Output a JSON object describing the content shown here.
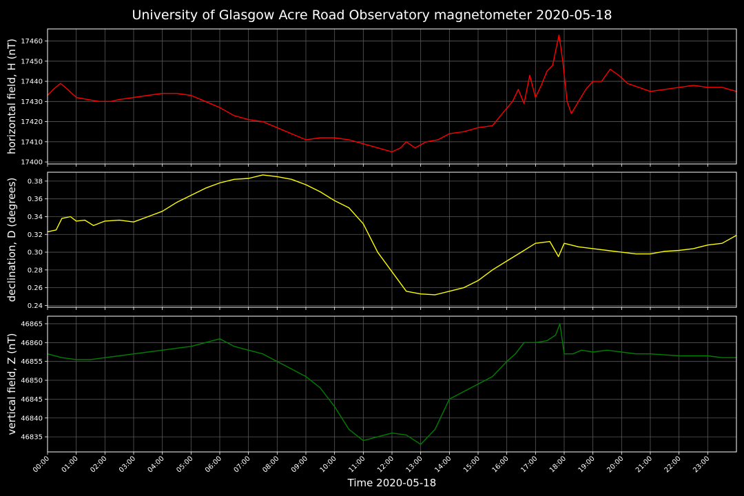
{
  "title": "University of Glasgow Acre Road Observatory magnetometer 2020-05-18",
  "chart_data": {
    "type": "line",
    "xlabel": "Time 2020-05-18",
    "x_ticks": [
      "00:00",
      "01:00",
      "02:00",
      "03:00",
      "04:00",
      "05:00",
      "06:00",
      "07:00",
      "08:00",
      "09:00",
      "10:00",
      "11:00",
      "12:00",
      "13:00",
      "14:00",
      "15:00",
      "16:00",
      "17:00",
      "18:00",
      "19:00",
      "20:00",
      "21:00",
      "22:00",
      "23:00"
    ],
    "xlim": [
      0,
      24
    ],
    "grid": true,
    "panels": [
      {
        "ylabel": "horizontal field, H (nT)",
        "color": "#ff0000",
        "ylim": [
          17399,
          17466
        ],
        "yticks": [
          "17400",
          "17410",
          "17420",
          "17430",
          "17440",
          "17450",
          "17460"
        ],
        "points": [
          [
            0,
            17433
          ],
          [
            0.2,
            17436
          ],
          [
            0.45,
            17439
          ],
          [
            0.7,
            17436
          ],
          [
            1,
            17432
          ],
          [
            1.4,
            17431
          ],
          [
            1.8,
            17430
          ],
          [
            2.2,
            17430
          ],
          [
            2.5,
            17431
          ],
          [
            3,
            17432
          ],
          [
            3.5,
            17433
          ],
          [
            4,
            17434
          ],
          [
            4.5,
            17434
          ],
          [
            5,
            17433
          ],
          [
            5.5,
            17430
          ],
          [
            6,
            17427
          ],
          [
            6.5,
            17423
          ],
          [
            7,
            17421
          ],
          [
            7.5,
            17420
          ],
          [
            8,
            17417
          ],
          [
            8.5,
            17414
          ],
          [
            9,
            17411
          ],
          [
            9.5,
            17412
          ],
          [
            10,
            17412
          ],
          [
            10.5,
            17411
          ],
          [
            11,
            17409
          ],
          [
            11.5,
            17407
          ],
          [
            12,
            17405
          ],
          [
            12.3,
            17407
          ],
          [
            12.5,
            17410
          ],
          [
            12.8,
            17407
          ],
          [
            13.2,
            17410
          ],
          [
            13.6,
            17411
          ],
          [
            14,
            17414
          ],
          [
            14.5,
            17415
          ],
          [
            15,
            17417
          ],
          [
            15.5,
            17418
          ],
          [
            15.9,
            17425
          ],
          [
            16.2,
            17430
          ],
          [
            16.4,
            17436
          ],
          [
            16.6,
            17429
          ],
          [
            16.8,
            17443
          ],
          [
            17,
            17432
          ],
          [
            17.2,
            17438
          ],
          [
            17.4,
            17445
          ],
          [
            17.6,
            17448
          ],
          [
            17.7,
            17455
          ],
          [
            17.82,
            17463
          ],
          [
            17.95,
            17450
          ],
          [
            18.1,
            17430
          ],
          [
            18.25,
            17424
          ],
          [
            18.5,
            17430
          ],
          [
            18.75,
            17436
          ],
          [
            19,
            17440
          ],
          [
            19.3,
            17440
          ],
          [
            19.6,
            17446
          ],
          [
            19.9,
            17443
          ],
          [
            20.2,
            17439
          ],
          [
            20.6,
            17437
          ],
          [
            21,
            17435
          ],
          [
            21.5,
            17436
          ],
          [
            22,
            17437
          ],
          [
            22.5,
            17438
          ],
          [
            23,
            17437
          ],
          [
            23.5,
            17437
          ],
          [
            24,
            17435
          ]
        ]
      },
      {
        "ylabel": "declination, D (degrees)",
        "color": "#ffff00",
        "ylim": [
          0.238,
          0.39
        ],
        "yticks": [
          "0.24",
          "0.26",
          "0.28",
          "0.30",
          "0.32",
          "0.34",
          "0.36",
          "0.38"
        ],
        "points": [
          [
            0,
            0.323
          ],
          [
            0.3,
            0.325
          ],
          [
            0.5,
            0.338
          ],
          [
            0.8,
            0.34
          ],
          [
            1,
            0.335
          ],
          [
            1.3,
            0.336
          ],
          [
            1.6,
            0.33
          ],
          [
            2,
            0.335
          ],
          [
            2.5,
            0.336
          ],
          [
            3,
            0.334
          ],
          [
            3.5,
            0.34
          ],
          [
            4,
            0.346
          ],
          [
            4.5,
            0.356
          ],
          [
            5,
            0.364
          ],
          [
            5.5,
            0.372
          ],
          [
            6,
            0.378
          ],
          [
            6.5,
            0.382
          ],
          [
            7,
            0.383
          ],
          [
            7.5,
            0.387
          ],
          [
            8,
            0.385
          ],
          [
            8.5,
            0.382
          ],
          [
            9,
            0.376
          ],
          [
            9.5,
            0.368
          ],
          [
            10,
            0.358
          ],
          [
            10.5,
            0.35
          ],
          [
            11,
            0.332
          ],
          [
            11.5,
            0.3
          ],
          [
            12,
            0.278
          ],
          [
            12.5,
            0.256
          ],
          [
            13,
            0.253
          ],
          [
            13.5,
            0.252
          ],
          [
            14,
            0.256
          ],
          [
            14.5,
            0.26
          ],
          [
            15,
            0.268
          ],
          [
            15.5,
            0.28
          ],
          [
            16,
            0.29
          ],
          [
            16.5,
            0.3
          ],
          [
            17,
            0.31
          ],
          [
            17.5,
            0.312
          ],
          [
            17.8,
            0.295
          ],
          [
            18,
            0.31
          ],
          [
            18.5,
            0.306
          ],
          [
            19,
            0.304
          ],
          [
            19.5,
            0.302
          ],
          [
            20,
            0.3
          ],
          [
            20.5,
            0.298
          ],
          [
            21,
            0.298
          ],
          [
            21.5,
            0.301
          ],
          [
            22,
            0.302
          ],
          [
            22.5,
            0.304
          ],
          [
            23,
            0.308
          ],
          [
            23.5,
            0.31
          ],
          [
            24,
            0.319
          ]
        ]
      },
      {
        "ylabel": "vertical field, Z (nT)",
        "color": "#008000",
        "ylim": [
          46831,
          46867
        ],
        "yticks": [
          "46835",
          "46840",
          "46845",
          "46850",
          "46855",
          "46860",
          "46865"
        ],
        "points": [
          [
            0,
            46857
          ],
          [
            0.5,
            46856
          ],
          [
            1,
            46855.5
          ],
          [
            1.5,
            46855.5
          ],
          [
            2,
            46856
          ],
          [
            2.5,
            46856.5
          ],
          [
            3,
            46857
          ],
          [
            3.5,
            46857.5
          ],
          [
            4,
            46858
          ],
          [
            4.5,
            46858.5
          ],
          [
            5,
            46859
          ],
          [
            5.5,
            46860
          ],
          [
            6,
            46861
          ],
          [
            6.5,
            46859
          ],
          [
            7,
            46858
          ],
          [
            7.5,
            46857
          ],
          [
            8,
            46855
          ],
          [
            8.5,
            46853
          ],
          [
            9,
            46851
          ],
          [
            9.5,
            46848
          ],
          [
            10,
            46843
          ],
          [
            10.5,
            46837
          ],
          [
            11,
            46834
          ],
          [
            11.5,
            46835
          ],
          [
            12,
            46836
          ],
          [
            12.5,
            46835.5
          ],
          [
            12.8,
            46834
          ],
          [
            13,
            46833
          ],
          [
            13.5,
            46837
          ],
          [
            14,
            46845
          ],
          [
            14.5,
            46847
          ],
          [
            15,
            46849
          ],
          [
            15.5,
            46851
          ],
          [
            16,
            46855
          ],
          [
            16.3,
            46857
          ],
          [
            16.6,
            46860
          ],
          [
            17,
            46860
          ],
          [
            17.4,
            46860.5
          ],
          [
            17.7,
            46862
          ],
          [
            17.85,
            46865
          ],
          [
            18,
            46857
          ],
          [
            18.3,
            46857
          ],
          [
            18.6,
            46858
          ],
          [
            19,
            46857.5
          ],
          [
            19.5,
            46858
          ],
          [
            20,
            46857.5
          ],
          [
            20.5,
            46857
          ],
          [
            21,
            46857
          ],
          [
            22,
            46856.5
          ],
          [
            23,
            46856.5
          ],
          [
            23.5,
            46856
          ],
          [
            24,
            46856
          ]
        ]
      }
    ]
  }
}
